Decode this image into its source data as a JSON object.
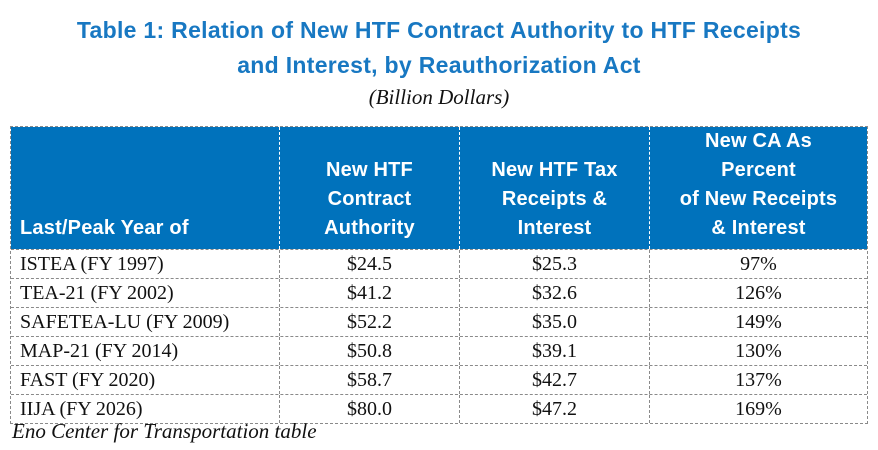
{
  "title": {
    "line1": "Table 1: Relation of New HTF Contract Authority to HTF Receipts",
    "line2": "and Interest, by Reauthorization Act",
    "subtitle": "(Billion Dollars)"
  },
  "colors": {
    "title_blue": "#1878C2",
    "header_blue": "#0072BC",
    "grid_gray": "#8A8A8A",
    "header_text": "#FFFFFF"
  },
  "table": {
    "columns": [
      {
        "header_lines": [
          "Last/Peak Year of"
        ]
      },
      {
        "header_lines": [
          "New HTF",
          "Contract",
          "Authority"
        ]
      },
      {
        "header_lines": [
          "New HTF Tax",
          "Receipts &",
          "Interest"
        ]
      },
      {
        "header_lines": [
          "New CA As",
          "Percent",
          "of New Receipts",
          "& Interest"
        ]
      }
    ],
    "rows": [
      {
        "act": "ISTEA (FY 1997)",
        "new_ca": "$24.5",
        "receipts": "$25.3",
        "pct": "97%"
      },
      {
        "act": "TEA-21 (FY 2002)",
        "new_ca": "$41.2",
        "receipts": "$32.6",
        "pct": "126%"
      },
      {
        "act": "SAFETEA-LU (FY 2009)",
        "new_ca": "$52.2",
        "receipts": "$35.0",
        "pct": "149%"
      },
      {
        "act": "MAP-21 (FY 2014)",
        "new_ca": "$50.8",
        "receipts": "$39.1",
        "pct": "130%"
      },
      {
        "act": "FAST (FY 2020)",
        "new_ca": "$58.7",
        "receipts": "$42.7",
        "pct": "137%"
      },
      {
        "act": "IIJA (FY 2026)",
        "new_ca": "$80.0",
        "receipts": "$47.2",
        "pct": "169%"
      }
    ]
  },
  "footer": {
    "source": "Eno Center for Transportation table"
  }
}
